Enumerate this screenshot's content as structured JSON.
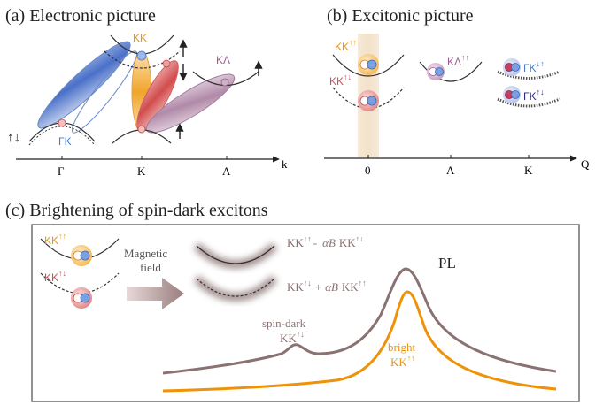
{
  "panel_a": {
    "title": "(a) Electronic picture",
    "valley_KK": "KK",
    "valley_KLambda": "KΛ",
    "valley_GammaK": "ΓK",
    "axis_ticks": [
      "Γ",
      "K",
      "Λ"
    ],
    "axis_label": "k",
    "spin_left": "↑↓"
  },
  "panel_b": {
    "title": "(b) Excitonic picture",
    "kk_bright": "KK",
    "kk_bright_spin": "↑↑",
    "kk_dark": "KK",
    "kk_dark_spin": "↑↓",
    "klambda": "KΛ",
    "klambda_spin": "↑↑",
    "gk_top": "ΓK",
    "gk_top_spin": "↓↑",
    "gk_bottom": "ΓK",
    "gk_bottom_spin": "↑↓",
    "axis_ticks": [
      "0",
      "Λ",
      "K"
    ],
    "axis_label": "Q"
  },
  "panel_c": {
    "title": "(c) Brightening of spin-dark excitons",
    "kk_bright": "KK",
    "kk_bright_spin": "↑↑",
    "kk_dark": "KK",
    "kk_dark_spin": "↑↓",
    "arrow_label_line1": "Magnetic",
    "arrow_label_line2": "field",
    "mix_top_a": "KK",
    "mix_top_a_spin": "↑↑",
    "mix_top_op": "-",
    "mix_top_coef": "αB",
    "mix_top_b": "KK",
    "mix_top_b_spin": "↑↓",
    "mix_bottom_a": "KK",
    "mix_bottom_a_spin": "↑↓",
    "mix_bottom_op": "+",
    "mix_bottom_coef": "αB",
    "mix_bottom_b": "KK",
    "mix_bottom_b_spin": "↑↑",
    "pl_label": "PL",
    "dark_label_line1": "spin-dark",
    "dark_label_kk": "KK",
    "dark_label_spin": "↑↓",
    "bright_label_line1": "bright",
    "bright_label_kk": "KK",
    "bright_label_spin": "↑↑"
  },
  "colors": {
    "orange": "#e8940f",
    "red": "#d24c5a",
    "blue": "#4a78c8",
    "purple": "#9c5b8f",
    "brown": "#8a7272",
    "dark_blue": "#2a2a8c"
  }
}
